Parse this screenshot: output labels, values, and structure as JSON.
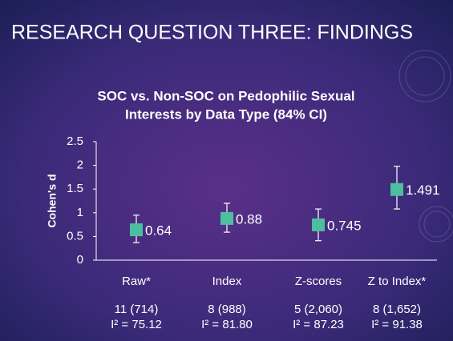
{
  "page_title": "RESEARCH QUESTION THREE: FINDINGS",
  "chart_data": {
    "type": "errorbar",
    "title": [
      "SOC vs. Non-SOC on Pedophilic Sexual",
      "Interests by Data Type (84% CI)"
    ],
    "ylabel": "Cohen's d",
    "categories": [
      "Raw*",
      "Index",
      "Z-scores",
      "Z to Index*"
    ],
    "values": [
      0.64,
      0.88,
      0.745,
      1.491
    ],
    "ci_low": [
      0.37,
      0.59,
      0.41,
      1.08
    ],
    "ci_high": [
      0.95,
      1.2,
      1.08,
      1.98
    ],
    "color": "#4dbf9f",
    "ylim": [
      0,
      2.5
    ],
    "yticks": [
      0,
      0.5,
      1,
      1.5,
      2,
      2.5
    ],
    "grid": false,
    "footnotes": [
      [
        "11 (714)",
        "8 (988)",
        "5 (2,060)",
        "8 (1,652)"
      ],
      [
        "I² = 75.12",
        "I² = 81.80",
        "I² = 87.23",
        "I² = 91.38"
      ]
    ]
  }
}
